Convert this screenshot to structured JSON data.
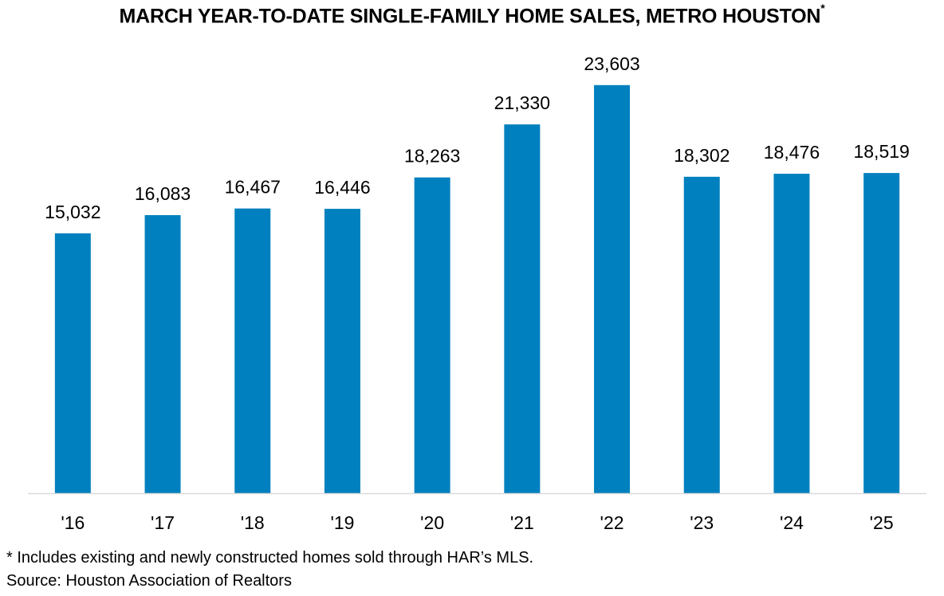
{
  "chart_data": {
    "type": "bar",
    "title": "MARCH YEAR-TO-DATE SINGLE-FAMILY HOME SALES, METRO HOUSTON",
    "title_marker": "*",
    "categories": [
      "'16",
      "'17",
      "'18",
      "'19",
      "'20",
      "'21",
      "'22",
      "'23",
      "'24",
      "'25"
    ],
    "values": [
      15032,
      16083,
      16467,
      16446,
      18263,
      21330,
      23603,
      18302,
      18476,
      18519
    ],
    "value_labels": [
      "15,032",
      "16,083",
      "16,467",
      "16,446",
      "18,263",
      "21,330",
      "23,603",
      "18,302",
      "18,476",
      "18,519"
    ],
    "xlabel": "",
    "ylabel": "",
    "ylim": [
      0,
      25000
    ],
    "grid": false,
    "legend": "none",
    "bar_color": "#0080BE",
    "axis_color": "#D9D9D9"
  },
  "footnotes": {
    "note": "* Includes existing and newly constructed homes sold through HAR’s MLS.",
    "source": "Source: Houston Association of Realtors"
  }
}
